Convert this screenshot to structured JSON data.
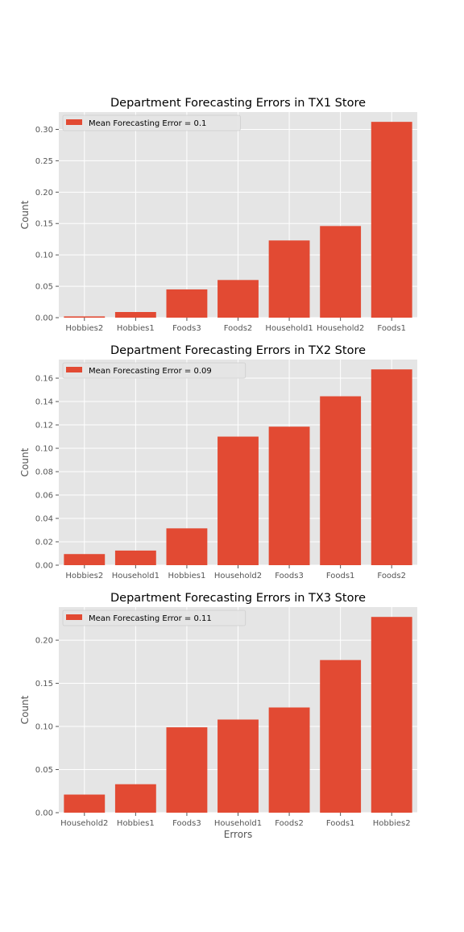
{
  "colors": {
    "bar": "#E24A33",
    "plot_bg": "#E5E5E5",
    "grid": "#FFFFFF",
    "tick_text": "#555555",
    "label_text": "#555555",
    "title_text": "#000000"
  },
  "chart_data": [
    {
      "type": "bar",
      "title": "Department Forecasting Errors in TX1 Store",
      "xlabel": "",
      "ylabel": "Count",
      "categories": [
        "Hobbies2",
        "Hobbies1",
        "Foods3",
        "Foods2",
        "Household1",
        "Household2",
        "Foods1"
      ],
      "values": [
        0.002,
        0.009,
        0.045,
        0.06,
        0.123,
        0.146,
        0.312
      ],
      "ylim": [
        0,
        0.3276
      ],
      "yticks": [
        0.0,
        0.05,
        0.1,
        0.15,
        0.2,
        0.25,
        0.3
      ],
      "ytick_labels": [
        "0.00",
        "0.05",
        "0.10",
        "0.15",
        "0.20",
        "0.25",
        "0.30"
      ],
      "legend": "Mean Forecasting Error = 0.1",
      "legend_position": "top-left",
      "grid": true
    },
    {
      "type": "bar",
      "title": "Department Forecasting Errors in TX2 Store",
      "xlabel": "",
      "ylabel": "Count",
      "categories": [
        "Hobbies2",
        "Household1",
        "Hobbies1",
        "Household2",
        "Foods3",
        "Foods1",
        "Foods2"
      ],
      "values": [
        0.0095,
        0.0125,
        0.0315,
        0.11,
        0.1185,
        0.1445,
        0.1675
      ],
      "ylim": [
        0,
        0.1759
      ],
      "yticks": [
        0.0,
        0.02,
        0.04,
        0.06,
        0.08,
        0.1,
        0.12,
        0.14,
        0.16
      ],
      "ytick_labels": [
        "0.00",
        "0.02",
        "0.04",
        "0.06",
        "0.08",
        "0.10",
        "0.12",
        "0.14",
        "0.16"
      ],
      "legend": "Mean Forecasting Error = 0.09",
      "legend_position": "top-left",
      "grid": true
    },
    {
      "type": "bar",
      "title": "Department Forecasting Errors in TX3 Store",
      "xlabel": "Errors",
      "ylabel": "Count",
      "categories": [
        "Household2",
        "Hobbies1",
        "Foods3",
        "Household1",
        "Foods2",
        "Foods1",
        "Hobbies2"
      ],
      "values": [
        0.021,
        0.033,
        0.099,
        0.108,
        0.122,
        0.177,
        0.227
      ],
      "ylim": [
        0,
        0.2384
      ],
      "yticks": [
        0.0,
        0.05,
        0.1,
        0.15,
        0.2
      ],
      "ytick_labels": [
        "0.00",
        "0.05",
        "0.10",
        "0.15",
        "0.20"
      ],
      "legend": "Mean Forecasting Error = 0.11",
      "legend_position": "top-left",
      "grid": true
    }
  ]
}
